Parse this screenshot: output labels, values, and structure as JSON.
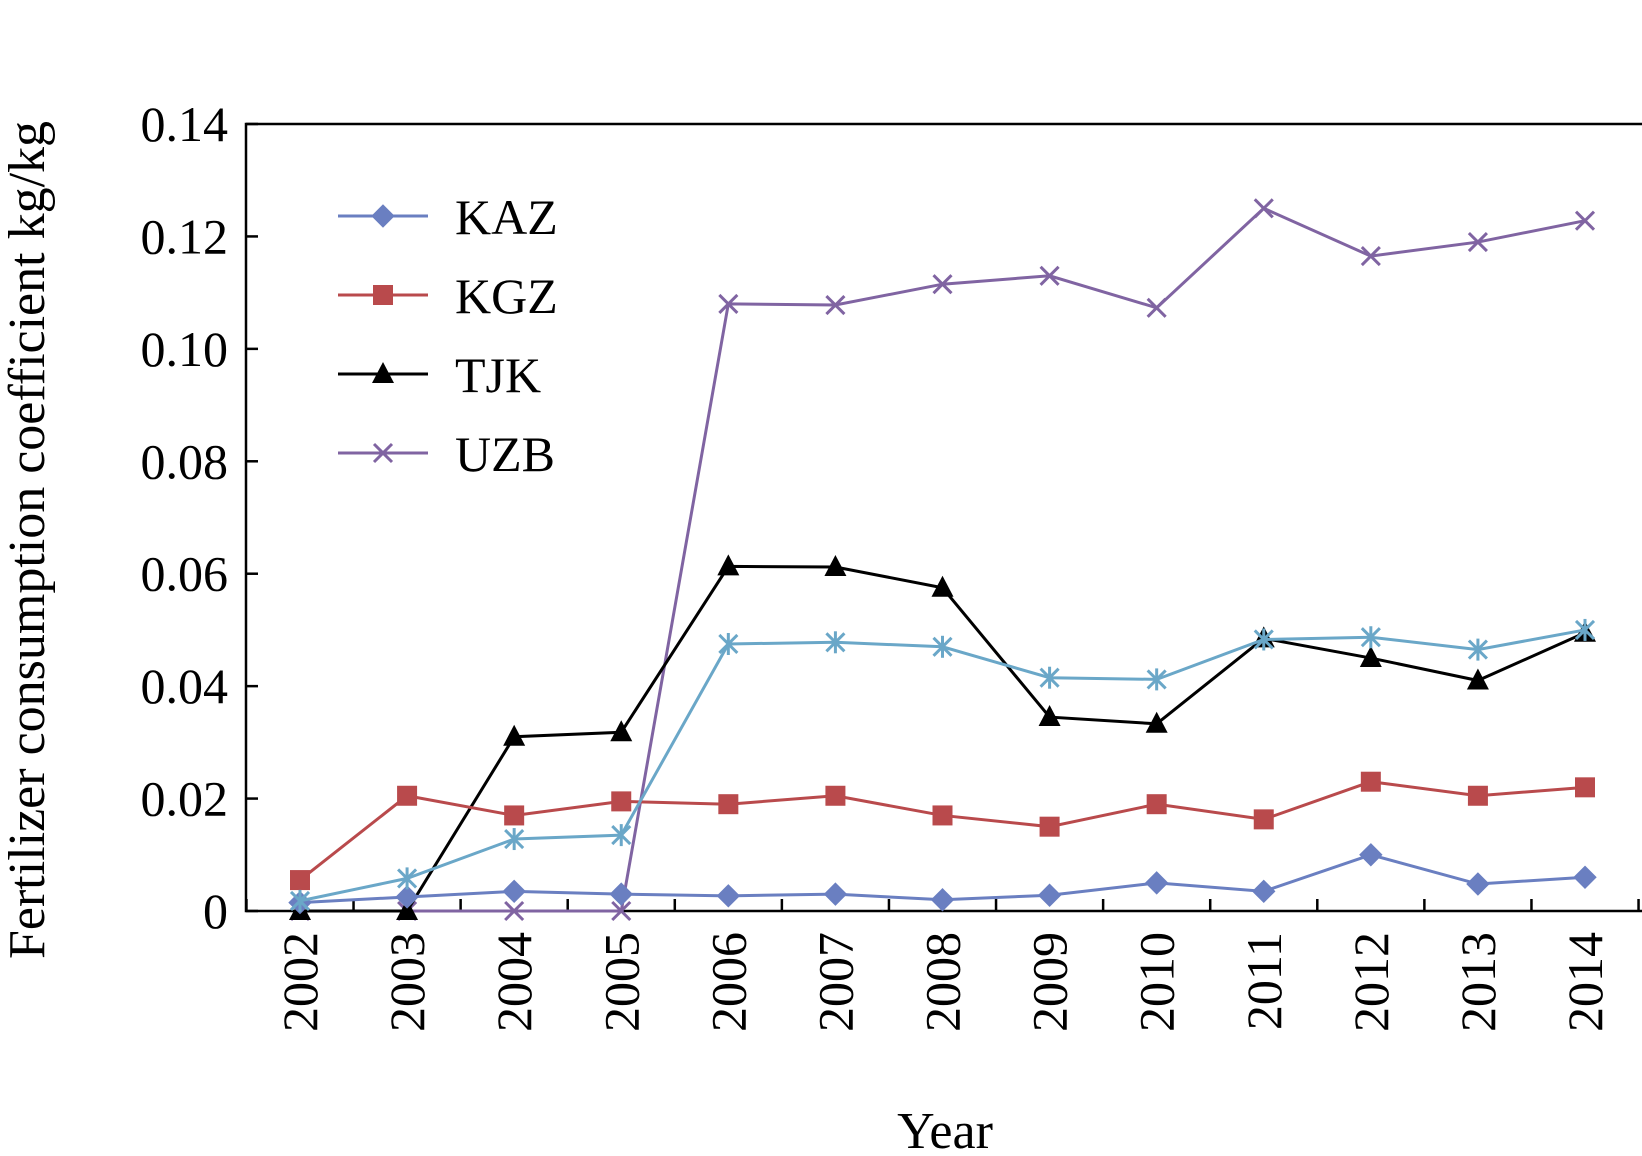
{
  "chart_data": {
    "type": "line",
    "xlabel": "Year",
    "ylabel": "Fertilizer consumption coefficient kg/kg",
    "x": [
      "2002",
      "2003",
      "2004",
      "2005",
      "2006",
      "2007",
      "2008",
      "2009",
      "2010",
      "2011",
      "2012",
      "2013",
      "2014"
    ],
    "ylim": [
      0,
      0.14
    ],
    "yticks": [
      "0",
      "0.02",
      "0.04",
      "0.06",
      "0.08",
      "0.10",
      "0.12",
      "0.14"
    ],
    "ytick_values": [
      0,
      0.02,
      0.04,
      0.06,
      0.08,
      0.1,
      0.12,
      0.14
    ],
    "grid": false,
    "legend_position": "top-left",
    "series": [
      {
        "name": "KAZ",
        "color": "#6a7fc1",
        "marker": "diamond",
        "values": [
          0.0015,
          0.0025,
          0.0035,
          0.003,
          0.0027,
          0.003,
          0.002,
          0.0028,
          0.005,
          0.0035,
          0.01,
          0.0048,
          0.006
        ]
      },
      {
        "name": "KGZ",
        "color": "#b94a4c",
        "marker": "square",
        "values": [
          0.0055,
          0.0205,
          0.017,
          0.0195,
          0.019,
          0.0205,
          0.017,
          0.015,
          0.019,
          0.0163,
          0.023,
          0.0205,
          0.022
        ]
      },
      {
        "name": "TJK",
        "color": "#000000",
        "marker": "triangle",
        "values": [
          0.0,
          0.0,
          0.031,
          0.0318,
          0.0613,
          0.0612,
          0.0575,
          0.0345,
          0.0333,
          0.0485,
          0.045,
          0.041,
          0.0495
        ]
      },
      {
        "name": "UZB",
        "color": "#8064a2",
        "marker": "x",
        "values": [
          0.0,
          0.0,
          0.0,
          0.0,
          0.108,
          0.1078,
          0.1115,
          0.113,
          0.1073,
          0.125,
          0.1165,
          0.119,
          0.1228
        ]
      },
      {
        "name": "",
        "color": "#6aa7c8",
        "marker": "asterisk",
        "values": [
          0.0018,
          0.0058,
          0.0128,
          0.0135,
          0.0475,
          0.0478,
          0.047,
          0.0415,
          0.0412,
          0.0483,
          0.0487,
          0.0465,
          0.05
        ]
      }
    ]
  }
}
